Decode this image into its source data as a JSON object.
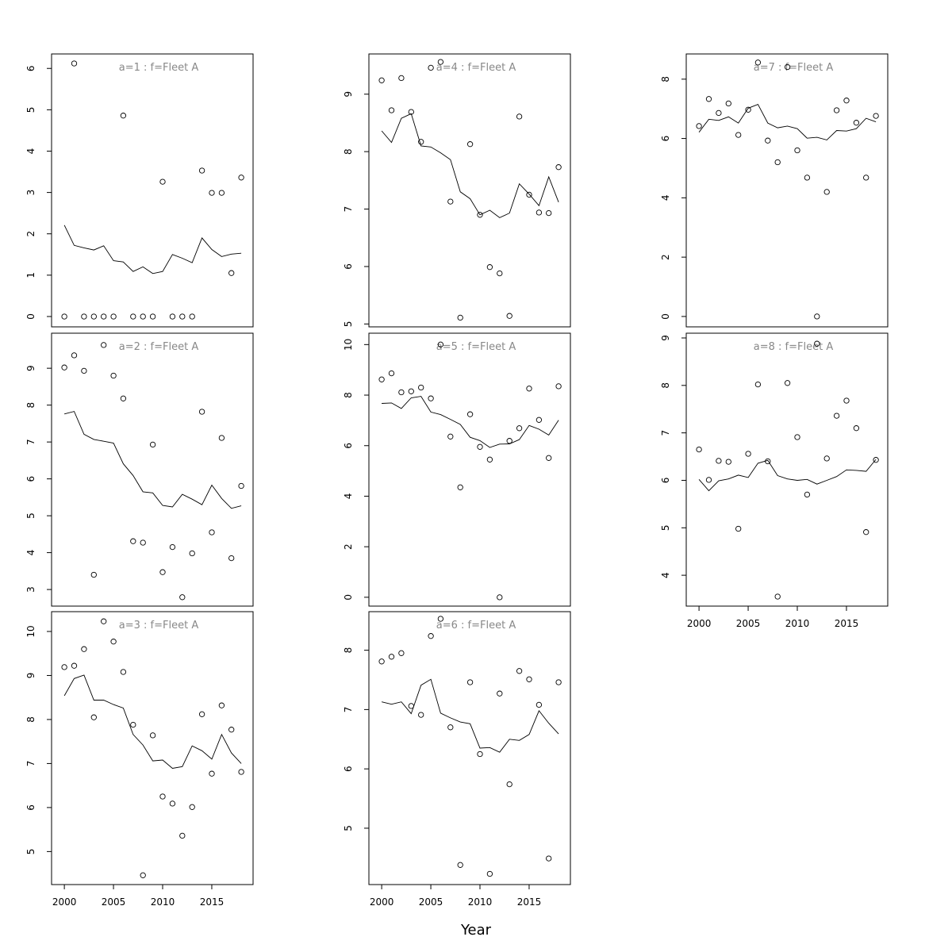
{
  "chart_data": {
    "type": "scatter",
    "xlabel": "Year",
    "x": [
      2000,
      2001,
      2002,
      2003,
      2004,
      2005,
      2006,
      2007,
      2008,
      2009,
      2010,
      2011,
      2012,
      2013,
      2014,
      2015,
      2016,
      2017,
      2018
    ],
    "xticks": [
      2000,
      2005,
      2010,
      2015
    ],
    "xlim": [
      1998.7,
      2019.2
    ],
    "grid": false,
    "markers": {
      "observed": "open circle",
      "fitted": "line"
    },
    "panels": [
      {
        "title": "a=1  :  f=Fleet A",
        "ylim": [
          -0.25,
          6.35
        ],
        "yticks": [
          0,
          1,
          2,
          3,
          4,
          5,
          6
        ],
        "observed": [
          0,
          6.12,
          0,
          0,
          0,
          0,
          4.86,
          0,
          0,
          0,
          3.26,
          0,
          0,
          0,
          3.53,
          2.99,
          2.99,
          1.05,
          3.36
        ],
        "fitted": [
          2.21,
          1.72,
          1.66,
          1.61,
          1.71,
          1.35,
          1.32,
          1.09,
          1.2,
          1.04,
          1.09,
          1.5,
          1.41,
          1.3,
          1.9,
          1.62,
          1.45,
          1.51,
          1.53
        ]
      },
      {
        "title": "a=2  :  f=Fleet A",
        "ylim": [
          2.55,
          9.95
        ],
        "yticks": [
          3,
          4,
          5,
          6,
          7,
          8,
          9
        ],
        "observed": [
          9.02,
          9.35,
          8.93,
          3.4,
          9.63,
          8.8,
          8.18,
          4.31,
          4.27,
          6.93,
          3.47,
          4.15,
          2.79,
          3.98,
          7.82,
          4.55,
          7.11,
          3.85,
          5.81
        ],
        "fitted": [
          7.76,
          7.83,
          7.21,
          7.07,
          7.02,
          6.97,
          6.41,
          6.09,
          5.65,
          5.62,
          5.28,
          5.24,
          5.58,
          5.45,
          5.3,
          5.83,
          5.47,
          5.2,
          5.27
        ]
      },
      {
        "title": "a=3  :  f=Fleet A",
        "ylim": [
          4.25,
          10.45
        ],
        "yticks": [
          5,
          6,
          7,
          8,
          9,
          10
        ],
        "observed": [
          9.19,
          9.22,
          9.6,
          8.05,
          10.23,
          9.77,
          9.08,
          7.88,
          4.46,
          7.64,
          6.25,
          6.09,
          5.36,
          6.01,
          8.12,
          6.77,
          8.32,
          7.77,
          6.81
        ],
        "fitted": [
          8.54,
          8.93,
          9.01,
          8.44,
          8.44,
          8.34,
          8.26,
          7.66,
          7.42,
          7.06,
          7.08,
          6.89,
          6.93,
          7.4,
          7.29,
          7.1,
          7.66,
          7.24,
          7.0
        ]
      },
      {
        "title": "a=4  :  f=Fleet A",
        "ylim": [
          4.95,
          9.7
        ],
        "yticks": [
          5,
          6,
          7,
          8,
          9
        ],
        "observed": [
          9.24,
          8.72,
          9.28,
          8.69,
          8.17,
          9.46,
          9.56,
          7.13,
          5.11,
          8.13,
          6.9,
          5.99,
          5.88,
          5.14,
          8.61,
          7.25,
          6.94,
          6.93,
          7.73
        ],
        "fitted": [
          8.36,
          8.16,
          8.58,
          8.66,
          8.1,
          8.08,
          7.98,
          7.86,
          7.3,
          7.18,
          6.9,
          6.98,
          6.85,
          6.93,
          7.44,
          7.26,
          7.06,
          7.56,
          7.12
        ]
      },
      {
        "title": "a=5  :  f=Fleet A",
        "ylim": [
          -0.35,
          10.45
        ],
        "yticks": [
          0,
          2,
          4,
          6,
          8,
          10
        ],
        "observed": [
          8.62,
          8.86,
          8.11,
          8.15,
          8.3,
          7.87,
          10.0,
          6.36,
          4.35,
          7.24,
          5.95,
          5.45,
          0,
          6.19,
          6.69,
          8.26,
          7.02,
          5.51,
          8.35
        ],
        "fitted": [
          7.67,
          7.69,
          7.47,
          7.89,
          7.95,
          7.33,
          7.23,
          7.04,
          6.84,
          6.33,
          6.2,
          5.93,
          6.06,
          6.07,
          6.24,
          6.8,
          6.65,
          6.42,
          7.01
        ]
      },
      {
        "title": "a=6  :  f=Fleet A",
        "ylim": [
          4.05,
          8.65
        ],
        "yticks": [
          5,
          6,
          7,
          8
        ],
        "observed": [
          7.81,
          7.89,
          7.95,
          7.06,
          6.91,
          8.24,
          8.53,
          6.7,
          4.38,
          7.46,
          6.25,
          4.23,
          7.27,
          5.74,
          7.65,
          7.51,
          7.08,
          4.49,
          7.46
        ],
        "fitted": [
          7.13,
          7.09,
          7.13,
          6.93,
          7.41,
          7.51,
          6.94,
          6.86,
          6.79,
          6.76,
          6.35,
          6.36,
          6.28,
          6.5,
          6.48,
          6.58,
          6.98,
          6.77,
          6.59
        ]
      },
      {
        "title": "a=7  :  f=Fleet A",
        "ylim": [
          -0.35,
          8.85
        ],
        "yticks": [
          0,
          2,
          4,
          6,
          8
        ],
        "observed": [
          6.42,
          7.33,
          6.86,
          7.18,
          6.12,
          6.97,
          8.56,
          5.93,
          5.2,
          8.41,
          5.6,
          4.68,
          0,
          4.2,
          6.95,
          7.28,
          6.53,
          4.68,
          6.76
        ],
        "fitted": [
          6.21,
          6.65,
          6.61,
          6.73,
          6.52,
          7.02,
          7.15,
          6.52,
          6.36,
          6.42,
          6.33,
          6.01,
          6.04,
          5.95,
          6.27,
          6.25,
          6.33,
          6.68,
          6.56
        ]
      },
      {
        "title": "a=8  :  f=Fleet A",
        "ylim": [
          3.35,
          9.1
        ],
        "yticks": [
          4,
          5,
          6,
          7,
          8,
          9
        ],
        "observed": [
          6.65,
          6.01,
          6.41,
          6.39,
          4.98,
          6.56,
          8.02,
          6.4,
          3.55,
          8.05,
          6.91,
          5.7,
          8.88,
          6.46,
          7.36,
          7.68,
          7.1,
          4.91,
          6.43
        ],
        "fitted": [
          6.02,
          5.78,
          5.99,
          6.03,
          6.11,
          6.06,
          6.36,
          6.42,
          6.1,
          6.03,
          6.0,
          6.02,
          5.92,
          6.0,
          6.08,
          6.22,
          6.21,
          6.19,
          6.44
        ]
      }
    ]
  }
}
